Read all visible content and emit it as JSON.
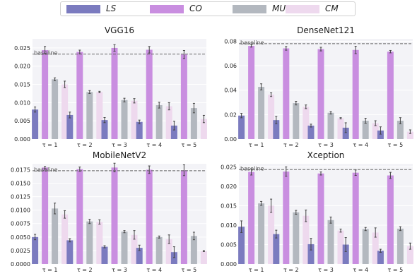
{
  "legend": {
    "items": [
      {
        "label": "LS",
        "color": "#7b7bbf"
      },
      {
        "label": "CO",
        "color": "#c98ee0"
      },
      {
        "label": "MU",
        "color": "#b3b8bf"
      },
      {
        "label": "CM",
        "color": "#eed9ee"
      }
    ]
  },
  "chart_data": [
    {
      "type": "bar",
      "title": "VGG16",
      "categories": [
        "τ = 1",
        "τ = 2",
        "τ = 3",
        "τ = 4",
        "τ = 5"
      ],
      "ylim": [
        0,
        0.0275
      ],
      "yticks": [
        "0.000",
        "0.005",
        "0.010",
        "0.015",
        "0.020",
        "0.025"
      ],
      "ytick_values": [
        0,
        0.005,
        0.01,
        0.015,
        0.02,
        0.025
      ],
      "baseline": {
        "label": "baseline",
        "value": 0.0233
      },
      "series": [
        {
          "name": "LS",
          "values": [
            0.0081,
            0.0066,
            0.0052,
            0.0047,
            0.0037
          ],
          "errors": [
            0.0007,
            0.0008,
            0.0007,
            0.0005,
            0.0012
          ]
        },
        {
          "name": "CO",
          "values": [
            0.0244,
            0.0239,
            0.025,
            0.0245,
            0.0232
          ],
          "errors": [
            0.001,
            0.0005,
            0.0009,
            0.0009,
            0.0011
          ]
        },
        {
          "name": "MU",
          "values": [
            0.0164,
            0.0129,
            0.0107,
            0.0093,
            0.0085
          ],
          "errors": [
            0.0004,
            0.0004,
            0.0005,
            0.0008,
            0.0013
          ]
        },
        {
          "name": "CM",
          "values": [
            0.015,
            0.0129,
            0.0105,
            0.009,
            0.0055
          ],
          "errors": [
            0.0009,
            0.0002,
            0.0006,
            0.001,
            0.001
          ]
        }
      ]
    },
    {
      "type": "bar",
      "title": "DenseNet121",
      "categories": [
        "τ = 1",
        "τ = 2",
        "τ = 3",
        "τ = 4",
        "τ = 5"
      ],
      "ylim": [
        0,
        0.082
      ],
      "yticks": [
        "0.00",
        "0.02",
        "0.04",
        "0.06",
        "0.08"
      ],
      "ytick_values": [
        0,
        0.02,
        0.04,
        0.06,
        0.08
      ],
      "baseline": {
        "label": "baseline",
        "value": 0.078
      },
      "series": [
        {
          "name": "LS",
          "values": [
            0.0192,
            0.0155,
            0.011,
            0.0093,
            0.007
          ],
          "errors": [
            0.0018,
            0.003,
            0.0012,
            0.004,
            0.003
          ]
        },
        {
          "name": "CO",
          "values": [
            0.0762,
            0.0742,
            0.0736,
            0.0729,
            0.0715
          ],
          "errors": [
            0.001,
            0.0015,
            0.0015,
            0.003,
            0.001
          ]
        },
        {
          "name": "MU",
          "values": [
            0.0427,
            0.0294,
            0.0215,
            0.015,
            0.015
          ],
          "errors": [
            0.0025,
            0.0015,
            0.001,
            0.002,
            0.0025
          ]
        },
        {
          "name": "CM",
          "values": [
            0.0363,
            0.0264,
            0.017,
            0.013,
            0.006
          ],
          "errors": [
            0.0015,
            0.0015,
            0.0005,
            0.002,
            0.0015
          ]
        }
      ]
    },
    {
      "type": "bar",
      "title": "MobileNetV2",
      "categories": [
        "τ = 1",
        "τ = 2",
        "τ = 3",
        "τ = 4",
        "τ = 5"
      ],
      "ylim": [
        0,
        0.0186
      ],
      "yticks": [
        "0.0000",
        "0.0025",
        "0.0050",
        "0.0075",
        "0.0100",
        "0.0125",
        "0.0150",
        "0.0175"
      ],
      "ytick_values": [
        0,
        0.0025,
        0.005,
        0.0075,
        0.01,
        0.0125,
        0.015,
        0.0175
      ],
      "baseline": {
        "label": "baseline",
        "value": 0.0173
      },
      "series": [
        {
          "name": "LS",
          "values": [
            0.005,
            0.0044,
            0.0032,
            0.003,
            0.0022
          ],
          "errors": [
            0.0005,
            0.0003,
            0.0002,
            0.0005,
            0.001
          ]
        },
        {
          "name": "CO",
          "values": [
            0.0179,
            0.0176,
            0.0179,
            0.0175,
            0.0174
          ],
          "errors": [
            0.0002,
            0.0004,
            0.0008,
            0.0007,
            0.001
          ]
        },
        {
          "name": "MU",
          "values": [
            0.0103,
            0.0079,
            0.006,
            0.005,
            0.0052
          ],
          "errors": [
            0.001,
            0.0004,
            0.0002,
            0.0002,
            0.0007
          ]
        },
        {
          "name": "CM",
          "values": [
            0.0092,
            0.0078,
            0.0054,
            0.0046,
            0.0024
          ],
          "errors": [
            0.0007,
            0.0004,
            0.0008,
            0.0008,
            0.0001
          ]
        }
      ]
    },
    {
      "type": "bar",
      "title": "Xception",
      "categories": [
        "τ = 1",
        "τ = 2",
        "τ = 3",
        "τ = 4",
        "τ = 5"
      ],
      "ylim": [
        0,
        0.0258
      ],
      "yticks": [
        "0.000",
        "0.005",
        "0.010",
        "0.015",
        "0.020",
        "0.025"
      ],
      "ytick_values": [
        0,
        0.005,
        0.01,
        0.015,
        0.02,
        0.025
      ],
      "baseline": {
        "label": "baseline",
        "value": 0.0243
      },
      "series": [
        {
          "name": "LS",
          "values": [
            0.0096,
            0.0077,
            0.0051,
            0.005,
            0.0034
          ],
          "errors": [
            0.0015,
            0.001,
            0.0015,
            0.0018,
            0.0004
          ]
        },
        {
          "name": "CO",
          "values": [
            0.0237,
            0.0238,
            0.0233,
            0.0235,
            0.0228
          ],
          "errors": [
            0.0008,
            0.0012,
            0.0004,
            0.0007,
            0.0008
          ]
        },
        {
          "name": "MU",
          "values": [
            0.0156,
            0.0133,
            0.0113,
            0.009,
            0.0091
          ],
          "errors": [
            0.0005,
            0.0005,
            0.0008,
            0.0004,
            0.0005
          ]
        },
        {
          "name": "CM",
          "values": [
            0.015,
            0.0124,
            0.0086,
            0.0081,
            0.0046
          ],
          "errors": [
            0.0017,
            0.0015,
            0.0004,
            0.0012,
            0.0008
          ]
        }
      ]
    }
  ]
}
